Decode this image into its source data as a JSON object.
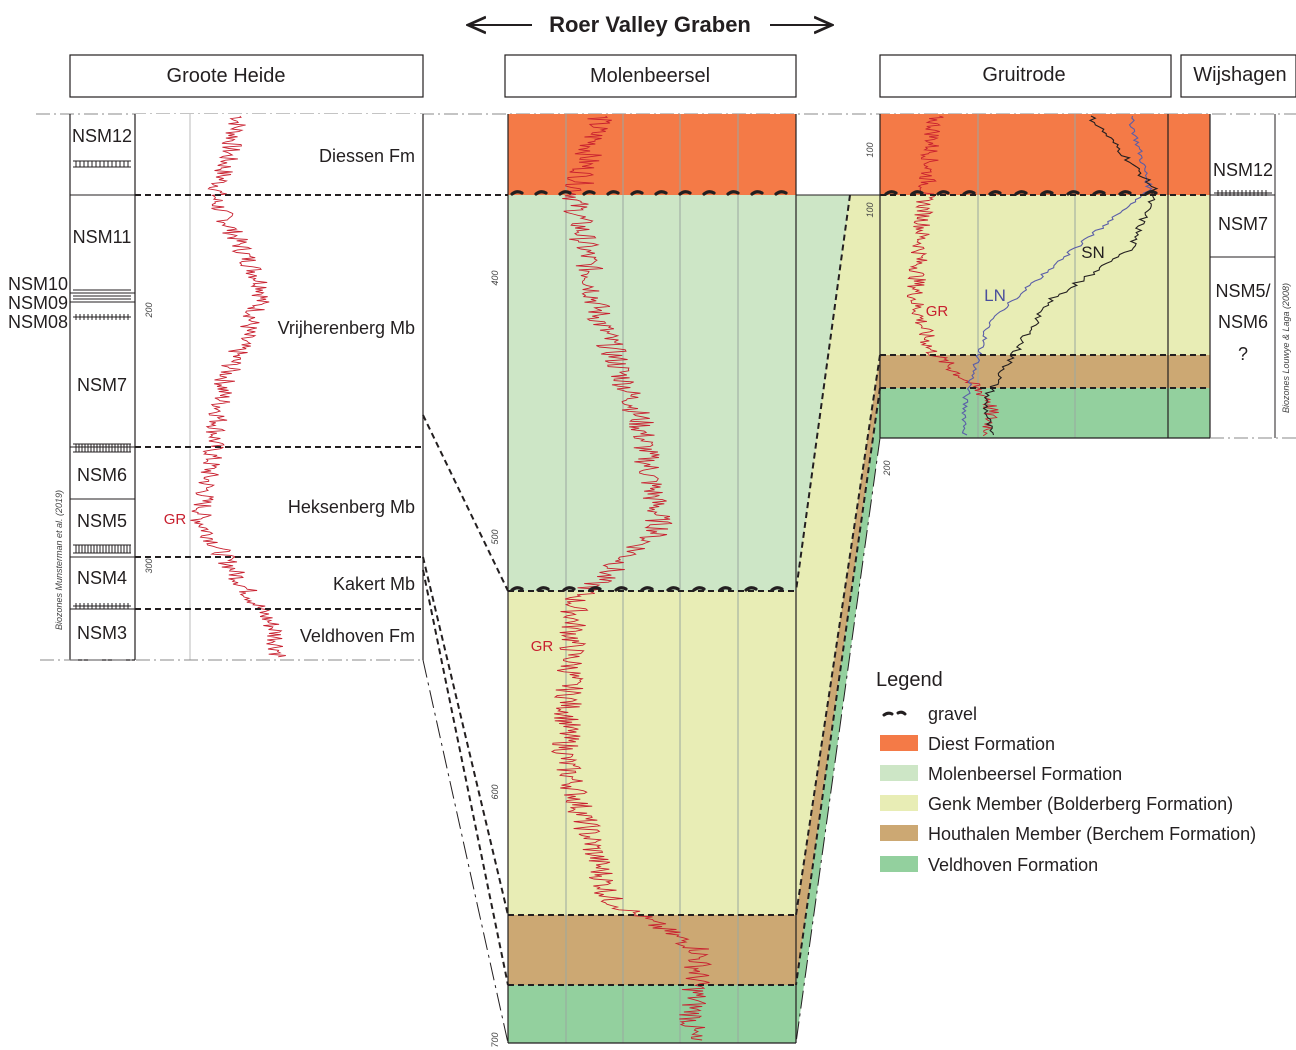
{
  "title": "Roer Valley Graben",
  "wells": {
    "groote_heide": "Groote Heide",
    "molenbeersel": "Molenbeersel",
    "gruitrode": "Gruitrode",
    "wijshagen": "Wijshagen"
  },
  "groote_heide": {
    "biozones": [
      "NSM12",
      "NSM11",
      "NSM10",
      "NSM09",
      "NSM08",
      "NSM7",
      "NSM6",
      "NSM5",
      "NSM4",
      "NSM3"
    ],
    "units": [
      "Diessen Fm",
      "Vrijherenberg Mb",
      "Heksenberg Mb",
      "Kakert Mb",
      "Veldhoven Fm"
    ],
    "depth_ticks": [
      "200",
      "300"
    ],
    "biozone_source": "Biozones Munsterman et al. (2019)",
    "log_label": "GR"
  },
  "molenbeersel": {
    "depth_ticks": [
      "400",
      "500",
      "600",
      "700"
    ],
    "log_label": "GR"
  },
  "gruitrode": {
    "depth_ticks": [
      "100",
      "100",
      "200"
    ],
    "log_labels": [
      "GR",
      "LN",
      "SN"
    ]
  },
  "wijshagen": {
    "biozones": [
      "NSM12",
      "NSM7",
      "NSM5/",
      "NSM6",
      "?"
    ],
    "biozone_source": "Biozones Louwye & Laga (2008)"
  },
  "legend": {
    "title": "Legend",
    "items": [
      {
        "label": "gravel",
        "color": "#231f20",
        "kind": "gravel"
      },
      {
        "label": "Diest Formation",
        "color": "#f47a47",
        "kind": "fill"
      },
      {
        "label": "Molenbeersel Formation",
        "color": "#cde6c6",
        "kind": "fill"
      },
      {
        "label": "Genk Member (Bolderberg Formation)",
        "color": "#e8edb5",
        "kind": "fill"
      },
      {
        "label": "Houthalen Member (Berchem Formation)",
        "color": "#cca873",
        "kind": "fill"
      },
      {
        "label": "Veldhoven Formation",
        "color": "#93d09e",
        "kind": "fill"
      }
    ]
  }
}
